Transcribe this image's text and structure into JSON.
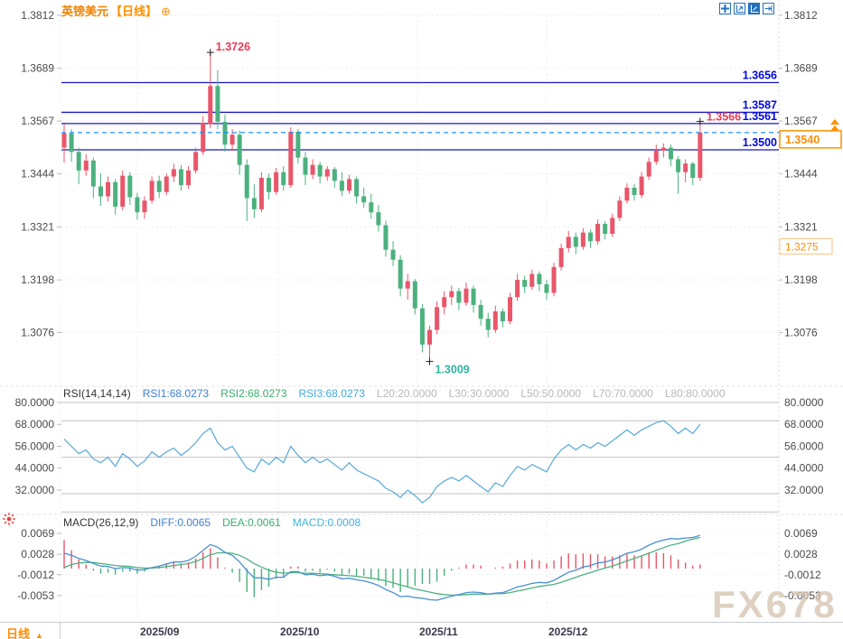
{
  "header": {
    "symbol": "英镑美元",
    "period": "【日线】",
    "add_icon": "⊕"
  },
  "toolbar": {
    "icons": [
      "move-icon",
      "fit-x-axis-icon",
      "fit-y-axis-icon",
      "jump-to-latest-icon"
    ]
  },
  "rsi_header": {
    "name": "RSI(14,14,14)",
    "rsi1": "RSI1:68.0273",
    "rsi2": "RSI2:68.0273",
    "rsi3": "RSI3:68.0273",
    "l20": "L20:20.0000",
    "l30": "L30:30.0000",
    "l50": "L50:50.0000",
    "l70": "L70:70.0000",
    "l80": "L80:80.0000"
  },
  "macd_header": {
    "name": "MACD(26,12,9)",
    "diff": "DIFF:0.0065",
    "dea": "DEA:0.0061",
    "macd": "MACD:0.0008"
  },
  "bottom_bar": {
    "period_label": "日线",
    "up_triangle": "▲",
    "x_labels": [
      "2025/09",
      "2025/10",
      "2025/11",
      "2025/12"
    ]
  },
  "watermark": "FX678",
  "colors": {
    "up": "#e9566a",
    "down": "#4cb17e",
    "accent_orange": "#ff8c00",
    "level_blue": "#1818c8",
    "label_blue": "#0008e0",
    "current_line": "#1e90ff",
    "rsi_line": "#55a9d9",
    "macd_diff": "#4a90d2",
    "macd_dea": "#4cb17e",
    "annotation_red": "#e83a55",
    "annotation_teal": "#2fb3a0"
  },
  "chart_data": {
    "type": "candlestick",
    "title": "英镑美元 日线 (GBP/USD Daily)",
    "price_axis_ticks": [
      "1.3812",
      "1.3689",
      "1.3567",
      "1.3444",
      "1.3321",
      "1.3198",
      "1.3076"
    ],
    "x_axis_ticks": [
      "2025/09",
      "2025/10",
      "2025/11",
      "2025/12"
    ],
    "levels": [
      "1.3656",
      "1.3587",
      "1.3561",
      "1.3500"
    ],
    "current_price": "1.3540",
    "right_axis_marker": "1.3275",
    "annotations": {
      "high": {
        "value": "1.3726",
        "candle_index": 20
      },
      "low": {
        "value": "1.3009",
        "candle_index": 50
      },
      "recent_high": {
        "value": "1.3566",
        "candle_index": 87
      }
    },
    "candles": [
      [
        1.3505,
        1.356,
        1.347,
        1.3538
      ],
      [
        1.3538,
        1.3548,
        1.3472,
        1.3495
      ],
      [
        1.3495,
        1.3505,
        1.342,
        1.3452
      ],
      [
        1.3452,
        1.349,
        1.344,
        1.3475
      ],
      [
        1.3475,
        1.3482,
        1.3388,
        1.3415
      ],
      [
        1.3415,
        1.3445,
        1.337,
        1.3392
      ],
      [
        1.3392,
        1.3438,
        1.338,
        1.3425
      ],
      [
        1.3425,
        1.3432,
        1.335,
        1.3368
      ],
      [
        1.3368,
        1.3452,
        1.336,
        1.344
      ],
      [
        1.344,
        1.3448,
        1.3372,
        1.339
      ],
      [
        1.339,
        1.34,
        1.3338,
        1.3355
      ],
      [
        1.3355,
        1.3392,
        1.334,
        1.3382
      ],
      [
        1.3382,
        1.3438,
        1.3375,
        1.3428
      ],
      [
        1.3428,
        1.344,
        1.3388,
        1.3402
      ],
      [
        1.3402,
        1.3445,
        1.3395,
        1.3438
      ],
      [
        1.3438,
        1.3468,
        1.3425,
        1.3455
      ],
      [
        1.3455,
        1.3465,
        1.3405,
        1.3418
      ],
      [
        1.3418,
        1.3462,
        1.341,
        1.3452
      ],
      [
        1.3452,
        1.3505,
        1.3445,
        1.3495
      ],
      [
        1.3495,
        1.3578,
        1.3488,
        1.3562
      ],
      [
        1.356,
        1.3726,
        1.355,
        1.3648
      ],
      [
        1.3648,
        1.3685,
        1.3548,
        1.3565
      ],
      [
        1.3565,
        1.3582,
        1.3495,
        1.3512
      ],
      [
        1.3512,
        1.3548,
        1.3498,
        1.3535
      ],
      [
        1.3535,
        1.3545,
        1.3442,
        1.3465
      ],
      [
        1.3465,
        1.3478,
        1.3335,
        1.3388
      ],
      [
        1.3388,
        1.342,
        1.3342,
        1.3362
      ],
      [
        1.3362,
        1.3448,
        1.3355,
        1.3435
      ],
      [
        1.3435,
        1.3445,
        1.3385,
        1.3402
      ],
      [
        1.3402,
        1.3458,
        1.3395,
        1.3448
      ],
      [
        1.3448,
        1.3462,
        1.3405,
        1.3418
      ],
      [
        1.3418,
        1.3552,
        1.3412,
        1.3542
      ],
      [
        1.3542,
        1.3548,
        1.3468,
        1.3482
      ],
      [
        1.3482,
        1.3495,
        1.3418,
        1.3442
      ],
      [
        1.3442,
        1.3478,
        1.3432,
        1.3465
      ],
      [
        1.3465,
        1.3472,
        1.3422,
        1.3438
      ],
      [
        1.3438,
        1.3462,
        1.3428,
        1.3455
      ],
      [
        1.3455,
        1.346,
        1.3412,
        1.3428
      ],
      [
        1.3428,
        1.3448,
        1.3392,
        1.3405
      ],
      [
        1.3405,
        1.3442,
        1.3398,
        1.3432
      ],
      [
        1.3432,
        1.3438,
        1.3375,
        1.3392
      ],
      [
        1.3392,
        1.3412,
        1.3365,
        1.3378
      ],
      [
        1.3378,
        1.3398,
        1.334,
        1.3355
      ],
      [
        1.3355,
        1.3372,
        1.331,
        1.3325
      ],
      [
        1.3325,
        1.3335,
        1.3252,
        1.3268
      ],
      [
        1.3268,
        1.3288,
        1.323,
        1.3245
      ],
      [
        1.3245,
        1.3255,
        1.316,
        1.3178
      ],
      [
        1.3178,
        1.3212,
        1.3152,
        1.3195
      ],
      [
        1.3195,
        1.32,
        1.3118,
        1.3132
      ],
      [
        1.3132,
        1.3142,
        1.303,
        1.3048
      ],
      [
        1.3048,
        1.3092,
        1.3009,
        1.3082
      ],
      [
        1.3082,
        1.3148,
        1.3072,
        1.3135
      ],
      [
        1.3135,
        1.3172,
        1.3118,
        1.3158
      ],
      [
        1.3158,
        1.3185,
        1.314,
        1.3172
      ],
      [
        1.3172,
        1.318,
        1.3128,
        1.3145
      ],
      [
        1.3145,
        1.3192,
        1.3138,
        1.3178
      ],
      [
        1.3178,
        1.3185,
        1.3122,
        1.314
      ],
      [
        1.314,
        1.3152,
        1.3092,
        1.3108
      ],
      [
        1.3108,
        1.3122,
        1.3065,
        1.3082
      ],
      [
        1.3082,
        1.3138,
        1.3075,
        1.3125
      ],
      [
        1.3125,
        1.3132,
        1.3088,
        1.3102
      ],
      [
        1.3102,
        1.3168,
        1.3095,
        1.3158
      ],
      [
        1.3158,
        1.3212,
        1.315,
        1.3198
      ],
      [
        1.3198,
        1.3208,
        1.3168,
        1.3182
      ],
      [
        1.3182,
        1.3222,
        1.3175,
        1.3212
      ],
      [
        1.3212,
        1.3218,
        1.3172,
        1.3188
      ],
      [
        1.3188,
        1.3198,
        1.3152,
        1.3168
      ],
      [
        1.3168,
        1.3238,
        1.316,
        1.3228
      ],
      [
        1.3228,
        1.3282,
        1.322,
        1.3272
      ],
      [
        1.3272,
        1.3312,
        1.3262,
        1.3298
      ],
      [
        1.3298,
        1.3308,
        1.3258,
        1.3275
      ],
      [
        1.3275,
        1.3318,
        1.3268,
        1.3308
      ],
      [
        1.3308,
        1.3315,
        1.3272,
        1.3288
      ],
      [
        1.3288,
        1.3338,
        1.328,
        1.3328
      ],
      [
        1.3328,
        1.3335,
        1.3292,
        1.3305
      ],
      [
        1.3305,
        1.3352,
        1.3298,
        1.3342
      ],
      [
        1.3342,
        1.3392,
        1.3335,
        1.3382
      ],
      [
        1.3382,
        1.3422,
        1.3375,
        1.3412
      ],
      [
        1.3412,
        1.342,
        1.3382,
        1.3395
      ],
      [
        1.3395,
        1.3448,
        1.3388,
        1.3438
      ],
      [
        1.3438,
        1.3482,
        1.343,
        1.3472
      ],
      [
        1.3472,
        1.3512,
        1.3465,
        1.3498
      ],
      [
        1.3498,
        1.3515,
        1.3482,
        1.3505
      ],
      [
        1.3505,
        1.3512,
        1.3462,
        1.3478
      ],
      [
        1.3478,
        1.3485,
        1.3398,
        1.3448
      ],
      [
        1.3448,
        1.3478,
        1.3425,
        1.3468
      ],
      [
        1.3468,
        1.3472,
        1.3418,
        1.3435
      ],
      [
        1.3435,
        1.3566,
        1.3428,
        1.354
      ]
    ],
    "rsi": {
      "axis_ticks": [
        "80.0000",
        "68.0000",
        "56.0000",
        "44.0000",
        "32.0000"
      ],
      "hlines": [
        80,
        70,
        50,
        30,
        20
      ],
      "values": [
        60,
        56,
        52,
        54,
        49,
        47,
        50,
        45,
        52,
        49,
        45,
        48,
        53,
        50,
        53,
        55,
        51,
        54,
        58,
        63,
        66,
        58,
        54,
        56,
        50,
        44,
        42,
        49,
        46,
        50,
        47,
        56,
        51,
        47,
        50,
        47,
        49,
        46,
        43,
        47,
        43,
        41,
        39,
        37,
        33,
        31,
        28,
        32,
        29,
        25,
        28,
        34,
        37,
        39,
        37,
        40,
        37,
        34,
        31,
        36,
        34,
        40,
        45,
        43,
        46,
        44,
        42,
        49,
        54,
        57,
        54,
        57,
        55,
        58,
        56,
        59,
        62,
        65,
        62,
        65,
        67,
        69,
        70,
        67,
        63,
        66,
        63,
        68
      ]
    },
    "macd": {
      "axis_ticks": [
        "0.0069",
        "0.0028",
        "-0.0012",
        "-0.0053"
      ],
      "diff": [
        0.003,
        0.0026,
        0.002,
        0.0016,
        0.001,
        0.0005,
        0.0004,
        0.0,
        0.0002,
        0.0001,
        -0.0003,
        -0.0002,
        0.0002,
        0.0005,
        0.0009,
        0.0013,
        0.0013,
        0.0016,
        0.0024,
        0.0036,
        0.0047,
        0.0042,
        0.0032,
        0.0026,
        0.0013,
        -0.0004,
        -0.0018,
        -0.0018,
        -0.0021,
        -0.0017,
        -0.0017,
        -0.0006,
        -0.0006,
        -0.0012,
        -0.0011,
        -0.0014,
        -0.0012,
        -0.0015,
        -0.002,
        -0.0019,
        -0.0022,
        -0.0024,
        -0.0028,
        -0.0033,
        -0.0041,
        -0.0047,
        -0.0055,
        -0.0054,
        -0.0057,
        -0.0058,
        -0.0061,
        -0.0062,
        -0.0058,
        -0.0054,
        -0.0051,
        -0.0047,
        -0.0046,
        -0.0047,
        -0.005,
        -0.0048,
        -0.0047,
        -0.0042,
        -0.0036,
        -0.0033,
        -0.0029,
        -0.0027,
        -0.0028,
        -0.0023,
        -0.0015,
        -0.0007,
        -0.0003,
        0.0003,
        0.0006,
        0.0011,
        0.0013,
        0.0017,
        0.0023,
        0.003,
        0.0033,
        0.0038,
        0.0046,
        0.0052,
        0.0056,
        0.0059,
        0.0058,
        0.006,
        0.0061,
        0.0065
      ],
      "dea": [
        0.0002,
        0.0008,
        0.0011,
        0.0012,
        0.0012,
        0.001,
        0.0008,
        0.0006,
        0.0005,
        0.0004,
        0.0002,
        0.0001,
        0.0001,
        0.0002,
        0.0004,
        0.0006,
        0.0008,
        0.001,
        0.0014,
        0.002,
        0.0027,
        0.0031,
        0.0031,
        0.003,
        0.0026,
        0.0019,
        0.001,
        0.0003,
        -0.0003,
        -0.0007,
        -0.0009,
        -0.0008,
        -0.0008,
        -0.0009,
        -0.0009,
        -0.001,
        -0.0011,
        -0.0012,
        -0.0013,
        -0.0014,
        -0.0015,
        -0.0017,
        -0.0019,
        -0.0021,
        -0.0024,
        -0.0028,
        -0.0032,
        -0.0036,
        -0.004,
        -0.0043,
        -0.0046,
        -0.0049,
        -0.0051,
        -0.0052,
        -0.0052,
        -0.0051,
        -0.005,
        -0.005,
        -0.005,
        -0.0049,
        -0.0049,
        -0.0047,
        -0.0044,
        -0.0041,
        -0.0038,
        -0.0035,
        -0.0033,
        -0.0031,
        -0.0027,
        -0.0022,
        -0.0017,
        -0.0012,
        -0.0008,
        -0.0003,
        0.0001,
        0.0005,
        0.001,
        0.0015,
        0.002,
        0.0025,
        0.003,
        0.0036,
        0.0041,
        0.0046,
        0.0049,
        0.0054,
        0.0058,
        0.0061
      ]
    }
  }
}
